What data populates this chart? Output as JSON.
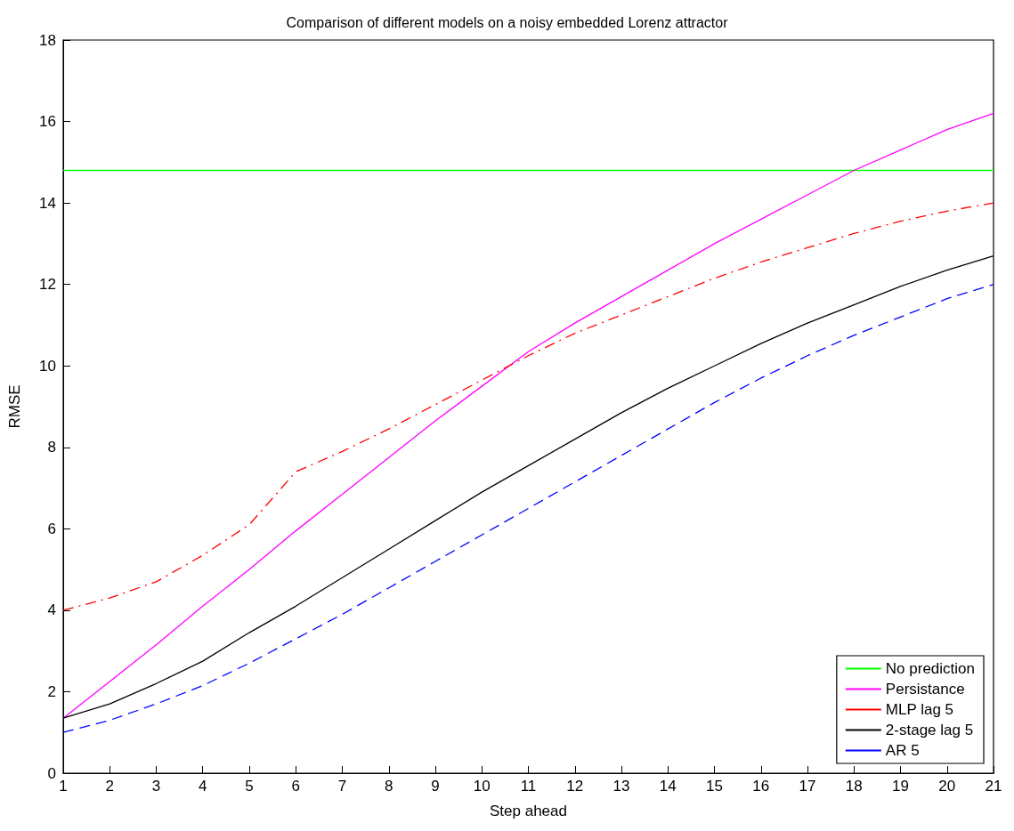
{
  "chart_data": {
    "type": "line",
    "title": "Comparison of different models on a noisy embedded Lorenz attractor",
    "xlabel": "Step ahead",
    "ylabel": "RMSE",
    "x": [
      1,
      2,
      3,
      4,
      5,
      6,
      7,
      8,
      9,
      10,
      11,
      12,
      13,
      14,
      15,
      16,
      17,
      18,
      19,
      20,
      21
    ],
    "series": [
      {
        "name": "No prediction",
        "color": "#00ff00",
        "line_style": "solid",
        "values": [
          14.8,
          14.8,
          14.8,
          14.8,
          14.8,
          14.8,
          14.8,
          14.8,
          14.8,
          14.8,
          14.8,
          14.8,
          14.8,
          14.8,
          14.8,
          14.8,
          14.8,
          14.8,
          14.8,
          14.8,
          14.8
        ]
      },
      {
        "name": "Persistance",
        "color": "#ff00ff",
        "line_style": "solid",
        "values": [
          1.35,
          2.25,
          3.15,
          4.1,
          5.0,
          5.95,
          6.85,
          7.75,
          8.65,
          9.5,
          10.35,
          11.05,
          11.7,
          12.35,
          13.0,
          13.6,
          14.2,
          14.8,
          15.3,
          15.8,
          16.2
        ]
      },
      {
        "name": "MLP lag 5",
        "color": "#ff0000",
        "line_style": "dashdot",
        "values": [
          4.0,
          4.3,
          4.7,
          5.35,
          6.1,
          7.4,
          7.9,
          8.45,
          9.05,
          9.65,
          10.25,
          10.8,
          11.25,
          11.7,
          12.15,
          12.55,
          12.9,
          13.25,
          13.55,
          13.8,
          14.0
        ]
      },
      {
        "name": "2-stage lag 5",
        "color": "#000000",
        "line_style": "solid",
        "values": [
          1.35,
          1.7,
          2.2,
          2.75,
          3.45,
          4.1,
          4.8,
          5.5,
          6.2,
          6.9,
          7.55,
          8.2,
          8.85,
          9.45,
          10.0,
          10.55,
          11.05,
          11.5,
          11.95,
          12.35,
          12.7
        ]
      },
      {
        "name": "AR 5",
        "color": "#0000ff",
        "line_style": "dashed",
        "values": [
          1.0,
          1.3,
          1.7,
          2.15,
          2.7,
          3.3,
          3.9,
          4.55,
          5.2,
          5.85,
          6.5,
          7.15,
          7.8,
          8.45,
          9.1,
          9.7,
          10.25,
          10.75,
          11.2,
          11.65,
          12.0
        ]
      }
    ],
    "xlim": [
      1,
      21
    ],
    "xticks": [
      1,
      2,
      3,
      4,
      5,
      6,
      7,
      8,
      9,
      10,
      11,
      12,
      13,
      14,
      15,
      16,
      17,
      18,
      19,
      20,
      21
    ],
    "ylim": [
      0,
      18
    ],
    "yticks": [
      0,
      2,
      4,
      6,
      8,
      10,
      12,
      14,
      16,
      18
    ],
    "grid": false,
    "legend": "bottom right",
    "marker": "none"
  }
}
